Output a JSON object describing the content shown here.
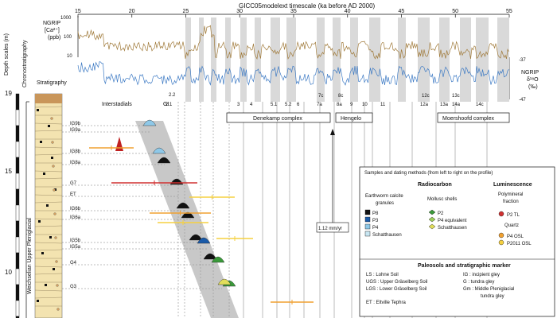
{
  "top_axis": {
    "title": "GICC05modelext timescale (ka before AD 2000)",
    "ticks": [
      "15",
      "20",
      "25",
      "30",
      "35",
      "40",
      "45",
      "50",
      "55"
    ]
  },
  "left_axis": {
    "title": "Depth scales (m)",
    "ticks": [
      "19",
      "15",
      "10"
    ]
  },
  "ngrip_ca": {
    "label_lines": [
      "NGRIP",
      "[Ca²⁺]",
      "(ppb)"
    ],
    "ticks": [
      "1000",
      "100",
      "10"
    ],
    "color": "#a07a3a"
  },
  "ngrip_o18": {
    "label_lines": [
      "NGRIP",
      "δ¹⁸O",
      "(‰)"
    ],
    "ticks": [
      "-37",
      "-47"
    ],
    "color": "#3d7ac4"
  },
  "chronostratigraphy_label": "Chronostratigraphy",
  "stratigraphy_label": "Stratigraphy",
  "interstadials_label": "Interstadials",
  "gi_label": "GI",
  "gi_numbers": [
    "2.2",
    "2.1",
    "3",
    "4",
    "5.1",
    "5.2",
    "6",
    "7c",
    "7a",
    "8c",
    "8a",
    "9",
    "10",
    "11",
    "12c",
    "12a",
    "13c",
    "13a",
    "14a",
    "14c"
  ],
  "complexes": [
    "Denekamp complex",
    "Hengelo",
    "Moershoofd complex"
  ],
  "rate_label": "1.12 mm/yr",
  "unit_label": "Weichselian Upper Pleniglacial",
  "horizons": [
    "IG9b",
    "IG9a",
    "IG8b",
    "IG8a",
    "G7",
    "ET",
    "IG6b",
    "IG6a",
    "IG5b",
    "IG5a",
    "G4",
    "G3"
  ],
  "legend": {
    "title": "Samples and dating methods (from left to right on the profile)",
    "radiocarbon": "Radiocarbon",
    "luminescence": "Luminescence",
    "earthworm": [
      "Earthworm calcite",
      "granules"
    ],
    "mollusc": "Mollusc shells",
    "polymineral": [
      "Polymineral",
      "fraction"
    ],
    "quartz": "Quartz",
    "items_earthworm": [
      {
        "label": "P8",
        "color": "#111111"
      },
      {
        "label": "P3",
        "color": "#1a5aa8"
      },
      {
        "label": "P4",
        "color": "#8ec8e8"
      },
      {
        "label": "Schatthausen",
        "color": "#c8e6f2"
      }
    ],
    "items_mollusc": [
      {
        "label": "P2",
        "color": "#3a9a3a"
      },
      {
        "label": "P4 equivalent",
        "color": "#9ccf5a"
      },
      {
        "label": "Schatthausen",
        "color": "#e2de5a"
      }
    ],
    "items_lum": [
      {
        "label": "P2 TL",
        "color": "#d03030"
      },
      {
        "label": "P4 OSL",
        "color": "#f0a030"
      },
      {
        "label": "P2011 OSL",
        "color": "#f5d040"
      }
    ]
  },
  "paleosols": {
    "title": "Paleosols and stratigraphic marker",
    "left": [
      "LS : Lohne Soil",
      "UGS : Upper Gräselberg Soil",
      "LGS : Lower Gräselberg Soil",
      "",
      "ET : Eltville Tephra"
    ],
    "right": [
      "IG : incipient gley",
      "G : tundra gley",
      "Gm : Middle Pleniglacial",
      "tundra gley"
    ]
  }
}
